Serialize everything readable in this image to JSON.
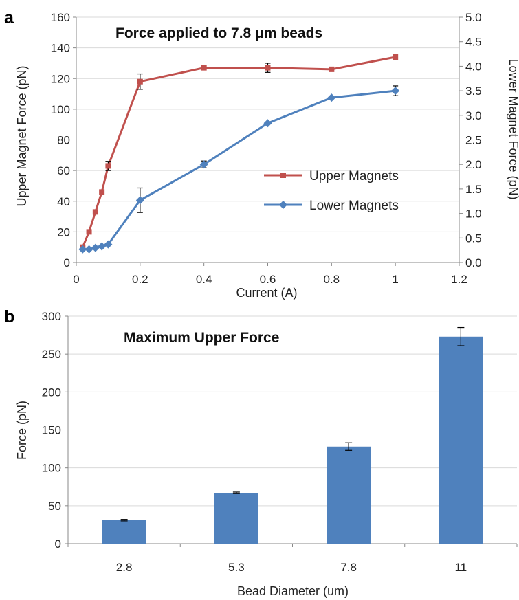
{
  "colors": {
    "upper": "#c0504d",
    "lower": "#4f81bd",
    "bar": "#4f81bd",
    "axis": "#888888"
  },
  "chart_data": [
    {
      "panel_label": "a",
      "type": "line",
      "title": "Force applied to 7.8 μm beads",
      "xlabel": "Current (A)",
      "ylabel": "Upper Magnet Force (pN)",
      "y2label": "Lower Magnet Force (pN)",
      "xlim": [
        0,
        1.2
      ],
      "ylim": [
        0,
        160
      ],
      "y2lim": [
        0,
        5.0
      ],
      "xticks": [
        "0",
        "0.2",
        "0.4",
        "0.6",
        "0.8",
        "1",
        "1.2"
      ],
      "yticks": [
        "0",
        "20",
        "40",
        "60",
        "80",
        "100",
        "120",
        "140",
        "160"
      ],
      "y2ticks": [
        "0.0",
        "0.5",
        "1.0",
        "1.5",
        "2.0",
        "2.5",
        "3.0",
        "3.5",
        "4.0",
        "4.5",
        "5.0"
      ],
      "legend_position": "right",
      "series": [
        {
          "name": "Upper Magnets",
          "axis": "left",
          "marker": "square",
          "x": [
            0.02,
            0.04,
            0.06,
            0.08,
            0.1,
            0.2,
            0.4,
            0.6,
            0.8,
            1.0
          ],
          "y": [
            10,
            20,
            33,
            46,
            63,
            118,
            127,
            127,
            126,
            134
          ],
          "err": [
            0,
            0,
            0,
            0,
            3,
            5,
            0,
            3,
            0,
            0
          ]
        },
        {
          "name": "Lower Magnets",
          "axis": "right",
          "marker": "diamond",
          "x": [
            0.02,
            0.04,
            0.06,
            0.08,
            0.1,
            0.2,
            0.4,
            0.6,
            0.8,
            1.0
          ],
          "y": [
            0.27,
            0.27,
            0.3,
            0.33,
            0.37,
            1.27,
            2.0,
            2.84,
            3.36,
            3.5
          ],
          "err": [
            0,
            0,
            0,
            0,
            0,
            0.25,
            0.07,
            0,
            0,
            0.1
          ]
        }
      ]
    },
    {
      "panel_label": "b",
      "type": "bar",
      "title": "Maximum Upper Force",
      "xlabel": "Bead Diameter (um)",
      "ylabel": "Force (pN)",
      "ylim": [
        0,
        300
      ],
      "yticks": [
        "0",
        "50",
        "100",
        "150",
        "200",
        "250",
        "300"
      ],
      "categories": [
        "2.8",
        "5.3",
        "7.8",
        "11"
      ],
      "values": [
        31,
        67,
        128,
        273
      ],
      "err": [
        1,
        1,
        5,
        12
      ]
    }
  ]
}
